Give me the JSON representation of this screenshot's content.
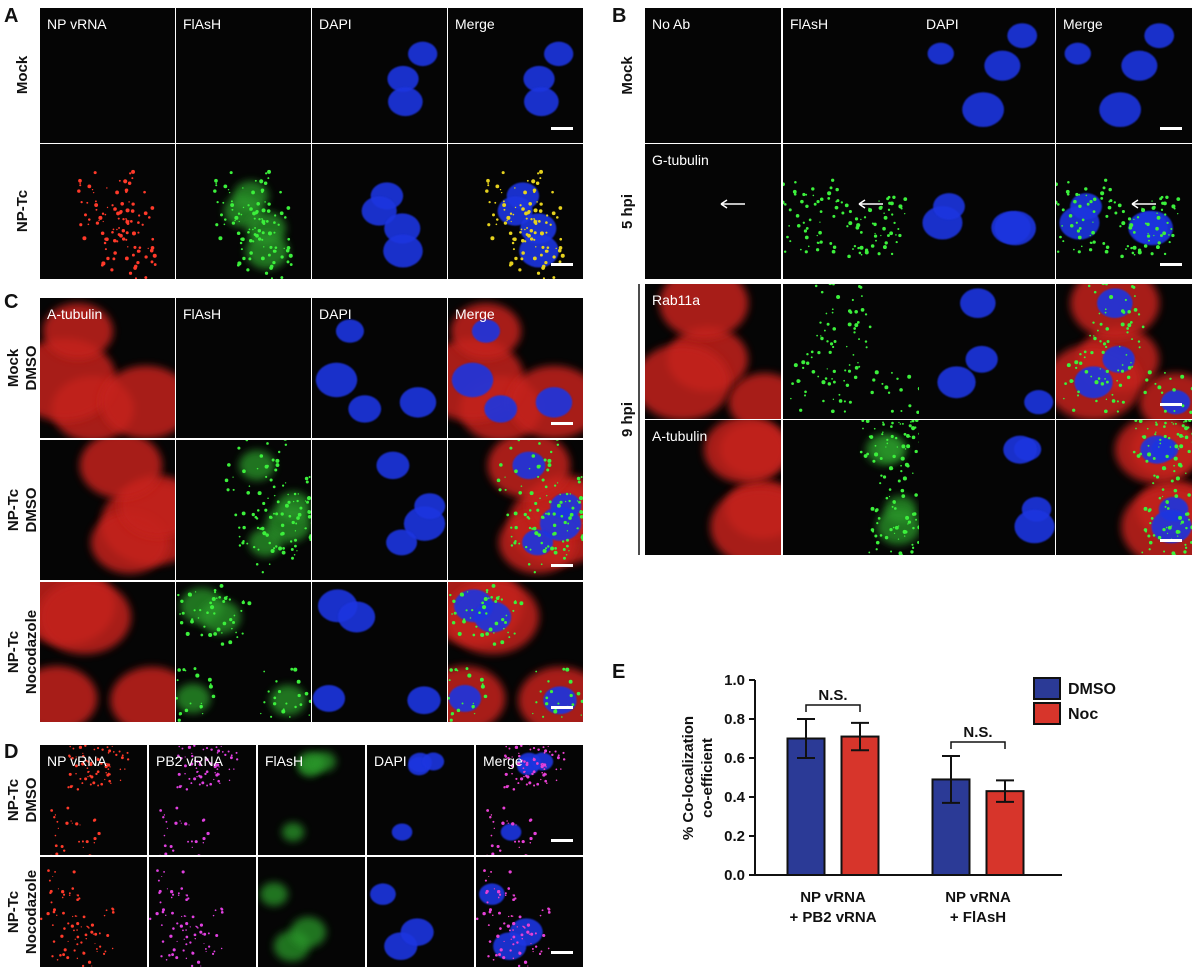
{
  "panel_a": {
    "letter": "A",
    "columns": [
      "NP vRNA",
      "FlAsH",
      "DAPI",
      "Merge"
    ],
    "rows": [
      [
        "Mock"
      ],
      [
        "NP-Tc"
      ]
    ]
  },
  "panel_b": {
    "letter": "B",
    "columns": [
      "No Ab",
      "FlAsH",
      "DAPI",
      "Merge"
    ],
    "row_titles": [
      "G-tubulin",
      "Rab11a",
      "A-tubulin"
    ],
    "groups": [
      "Mock",
      "5 hpi",
      "9 hpi"
    ]
  },
  "panel_c": {
    "letter": "C",
    "columns": [
      "A-tubulin",
      "FlAsH",
      "DAPI",
      "Merge"
    ],
    "rows": [
      [
        "Mock",
        "DMSO"
      ],
      [
        "NP-Tc",
        "DMSO"
      ],
      [
        "NP-Tc",
        "Nocodazole"
      ]
    ]
  },
  "panel_d": {
    "letter": "D",
    "columns": [
      "NP vRNA",
      "PB2 vRNA",
      "FlAsH",
      "DAPI",
      "Merge"
    ],
    "rows": [
      [
        "NP-Tc",
        "DMSO"
      ],
      [
        "NP-Tc",
        "Nocodazole"
      ]
    ]
  },
  "chart_data": {
    "type": "bar",
    "letter": "E",
    "ylabel": [
      "% Co-localization",
      "co-efficient"
    ],
    "categories": [
      [
        "NP vRNA",
        "+ PB2 vRNA"
      ],
      [
        "NP vRNA",
        "+ FlAsH"
      ]
    ],
    "series": [
      {
        "name": "DMSO",
        "color": "#2b3a96",
        "values": [
          0.7,
          0.49
        ],
        "errors": [
          0.1,
          0.12
        ]
      },
      {
        "name": "Noc",
        "color": "#d7352b",
        "values": [
          0.71,
          0.43
        ],
        "errors": [
          0.07,
          0.055
        ]
      }
    ],
    "ylim": [
      0,
      1
    ],
    "yticks": [
      {
        "value": 0,
        "label": "0.0"
      },
      0.2,
      0.4,
      0.6,
      0.8,
      {
        "value": 1,
        "label": "1.0"
      }
    ],
    "annotations": [
      "N.S.",
      "N.S."
    ]
  }
}
